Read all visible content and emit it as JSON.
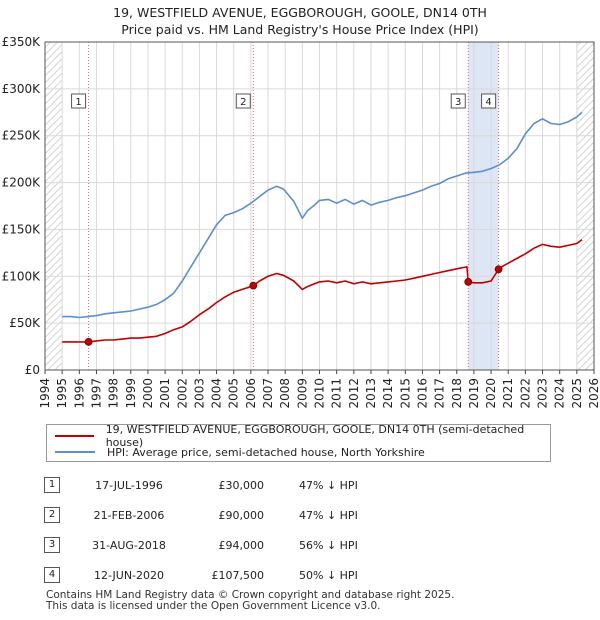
{
  "chart_data": {
    "type": "line",
    "title": "19, WESTFIELD AVENUE, EGGBOROUGH, GOOLE, DN14 0TH",
    "subtitle": "Price paid vs. HM Land Registry's House Price Index (HPI)",
    "xlim": [
      1994,
      2026
    ],
    "ylim": [
      0,
      350000
    ],
    "x_ticks": [
      "1994",
      "1995",
      "1996",
      "1997",
      "1998",
      "1999",
      "2000",
      "2001",
      "2002",
      "2003",
      "2004",
      "2005",
      "2006",
      "2007",
      "2008",
      "2009",
      "2010",
      "2011",
      "2012",
      "2013",
      "2014",
      "2015",
      "2016",
      "2017",
      "2018",
      "2019",
      "2020",
      "2021",
      "2022",
      "2023",
      "2024",
      "2025",
      "2026"
    ],
    "y_ticks": [
      {
        "value": 0,
        "label": "£0"
      },
      {
        "value": 50000,
        "label": "£50K"
      },
      {
        "value": 100000,
        "label": "£100K"
      },
      {
        "value": 150000,
        "label": "£150K"
      },
      {
        "value": 200000,
        "label": "£200K"
      },
      {
        "value": 250000,
        "label": "£250K"
      },
      {
        "value": 300000,
        "label": "£300K"
      },
      {
        "value": 350000,
        "label": "£350K"
      }
    ],
    "grid": true,
    "series": [
      {
        "name": "HPI: Average price, semi-detached house, North Yorkshire",
        "color": "#5b8fcf",
        "x": [
          1995.0,
          1995.5,
          1996.0,
          1996.5,
          1997.0,
          1997.5,
          1998.0,
          1998.5,
          1999.0,
          1999.5,
          2000.0,
          2000.5,
          2001.0,
          2001.5,
          2002.0,
          2002.5,
          2003.0,
          2003.5,
          2004.0,
          2004.5,
          2005.0,
          2005.5,
          2006.0,
          2006.5,
          2007.0,
          2007.5,
          2007.9,
          2008.5,
          2009.0,
          2009.3,
          2009.7,
          2010.0,
          2010.5,
          2011.0,
          2011.5,
          2012.0,
          2012.5,
          2013.0,
          2013.5,
          2014.0,
          2014.5,
          2015.0,
          2015.5,
          2016.0,
          2016.5,
          2017.0,
          2017.5,
          2018.0,
          2018.5,
          2019.0,
          2019.5,
          2020.0,
          2020.5,
          2021.0,
          2021.5,
          2022.0,
          2022.5,
          2023.0,
          2023.5,
          2024.0,
          2024.5,
          2025.0,
          2025.3
        ],
        "y": [
          57000,
          57000,
          56000,
          57000,
          58000,
          60000,
          61000,
          62000,
          63000,
          65000,
          67000,
          70000,
          75000,
          82000,
          95000,
          110000,
          125000,
          140000,
          155000,
          165000,
          168000,
          172000,
          178000,
          185000,
          192000,
          196000,
          193000,
          180000,
          162000,
          170000,
          176000,
          181000,
          182000,
          178000,
          182000,
          177000,
          181000,
          176000,
          179000,
          181000,
          184000,
          186000,
          189000,
          192000,
          196000,
          199000,
          204000,
          207000,
          210000,
          211000,
          212000,
          215000,
          219000,
          226000,
          236000,
          252000,
          263000,
          268000,
          263000,
          262000,
          265000,
          270000,
          275000
        ]
      },
      {
        "name": "19, WESTFIELD AVENUE, EGGBOROUGH, GOOLE, DN14 0TH (semi-detached house)",
        "color": "#c00000",
        "x": [
          1995.0,
          1995.5,
          1996.0,
          1996.54,
          1997.0,
          1997.5,
          1998.0,
          1998.5,
          1999.0,
          1999.5,
          2000.0,
          2000.5,
          2001.0,
          2001.5,
          2002.0,
          2002.5,
          2003.0,
          2003.5,
          2004.0,
          2004.5,
          2005.0,
          2005.5,
          2006.14,
          2006.5,
          2007.0,
          2007.5,
          2007.9,
          2008.5,
          2009.0,
          2009.3,
          2009.7,
          2010.0,
          2010.5,
          2011.0,
          2011.5,
          2012.0,
          2012.5,
          2013.0,
          2013.5,
          2014.0,
          2014.5,
          2015.0,
          2015.5,
          2016.0,
          2016.5,
          2017.0,
          2017.5,
          2018.0,
          2018.6,
          2018.67,
          2019.0,
          2019.5,
          2020.0,
          2020.44,
          2020.6,
          2021.0,
          2021.5,
          2022.0,
          2022.5,
          2023.0,
          2023.5,
          2024.0,
          2024.5,
          2025.0,
          2025.3
        ],
        "y": [
          30000,
          30000,
          30000,
          30000,
          31000,
          32000,
          32000,
          33000,
          34000,
          34000,
          35000,
          36000,
          39000,
          43000,
          46000,
          52000,
          59000,
          65000,
          72000,
          78000,
          83000,
          86000,
          90000,
          95000,
          100000,
          103000,
          101000,
          95000,
          86000,
          89000,
          92000,
          94000,
          95000,
          93000,
          95000,
          92000,
          94000,
          92000,
          93000,
          94000,
          95000,
          96000,
          98000,
          100000,
          102000,
          104000,
          106000,
          108000,
          110000,
          94000,
          93000,
          93000,
          95000,
          107500,
          110000,
          114000,
          119000,
          124000,
          130000,
          134000,
          132000,
          131000,
          133000,
          135000,
          139000
        ]
      }
    ],
    "sales": [
      {
        "id": "1",
        "x": 1996.54,
        "y": 30000
      },
      {
        "id": "2",
        "x": 2006.14,
        "y": 90000
      },
      {
        "id": "3",
        "x": 2018.67,
        "y": 94000
      },
      {
        "id": "4",
        "x": 2020.44,
        "y": 107500
      }
    ],
    "shaded_range": [
      2018.67,
      2020.44
    ],
    "hatched_before": 1995,
    "hatched_after": 2025
  },
  "legend": {
    "property_label": "19, WESTFIELD AVENUE, EGGBOROUGH, GOOLE, DN14 0TH (semi-detached house)",
    "hpi_label": "HPI: Average price, semi-detached house, North Yorkshire"
  },
  "sales_table": [
    {
      "num": "1",
      "date": "17-JUL-1996",
      "price": "£30,000",
      "hpi": "47% ↓ HPI"
    },
    {
      "num": "2",
      "date": "21-FEB-2006",
      "price": "£90,000",
      "hpi": "47% ↓ HPI"
    },
    {
      "num": "3",
      "date": "31-AUG-2018",
      "price": "£94,000",
      "hpi": "56% ↓ HPI"
    },
    {
      "num": "4",
      "date": "12-JUN-2020",
      "price": "£107,500",
      "hpi": "50% ↓ HPI"
    }
  ],
  "footer": {
    "line1": "Contains HM Land Registry data © Crown copyright and database right 2025.",
    "line2": "This data is licensed under the Open Government Licence v3.0."
  },
  "colors": {
    "property": "#c00000",
    "hpi": "#5b8fcf",
    "shade": "#dde6f5",
    "grid": "#d9d9d9"
  }
}
